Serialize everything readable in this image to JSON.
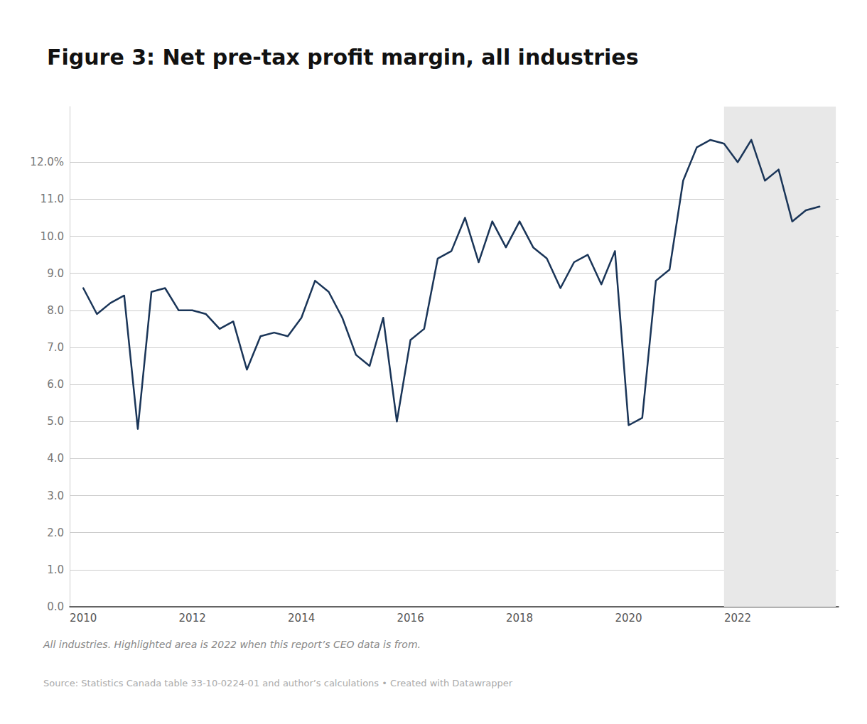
{
  "chart_data": {
    "type": "line",
    "title": "Figure 3: Net pre-tax profit margin, all industries",
    "annotations": [
      "All industries. Highlighted area is 2022 when this report’s CEO data is from.",
      "Source: Statistics Canada table 33-10-0224-01 and author’s calculations • Created with Datawrapper"
    ],
    "color": "#1a3558",
    "highlight": {
      "x": [
        2021.75,
        2023.8
      ],
      "color": "#e8e8e8"
    },
    "x": [
      2010.0,
      2010.25,
      2010.5,
      2010.75,
      2011.0,
      2011.25,
      2011.5,
      2011.75,
      2012.0,
      2012.25,
      2012.5,
      2012.75,
      2013.0,
      2013.25,
      2013.5,
      2013.75,
      2014.0,
      2014.25,
      2014.5,
      2014.75,
      2015.0,
      2015.25,
      2015.5,
      2015.75,
      2016.0,
      2016.25,
      2016.5,
      2016.75,
      2017.0,
      2017.25,
      2017.5,
      2017.75,
      2018.0,
      2018.25,
      2018.5,
      2018.75,
      2019.0,
      2019.25,
      2019.5,
      2019.75,
      2020.0,
      2020.25,
      2020.5,
      2020.75,
      2021.0,
      2021.25,
      2021.5,
      2021.75,
      2022.0,
      2022.25,
      2022.5,
      2022.75,
      2023.0,
      2023.25,
      2023.5
    ],
    "values": [
      8.6,
      7.9,
      8.2,
      8.4,
      4.8,
      8.5,
      8.6,
      8.0,
      8.0,
      7.9,
      7.5,
      7.7,
      6.4,
      7.3,
      7.4,
      7.3,
      7.8,
      8.8,
      8.5,
      7.8,
      6.8,
      6.5,
      7.8,
      5.0,
      7.2,
      7.5,
      9.4,
      9.6,
      10.5,
      9.3,
      10.4,
      9.7,
      10.4,
      9.7,
      9.4,
      8.6,
      9.3,
      9.5,
      8.7,
      9.6,
      4.9,
      5.1,
      8.8,
      9.1,
      11.5,
      12.4,
      12.6,
      12.5,
      12.0,
      12.6,
      11.5,
      11.8,
      10.4,
      10.7,
      10.8
    ],
    "xlim": [
      2009.75,
      2023.85
    ],
    "xticks": [
      2010,
      2012,
      2014,
      2016,
      2018,
      2020,
      2022
    ],
    "ylim": [
      0.0,
      13.5
    ],
    "yticks": [
      {
        "value": 0.0,
        "label": "0.0"
      },
      {
        "value": 1.0,
        "label": "1.0"
      },
      {
        "value": 2.0,
        "label": "2.0"
      },
      {
        "value": 3.0,
        "label": "3.0"
      },
      {
        "value": 4.0,
        "label": "4.0"
      },
      {
        "value": 5.0,
        "label": "5.0"
      },
      {
        "value": 6.0,
        "label": "6.0"
      },
      {
        "value": 7.0,
        "label": "7.0"
      },
      {
        "value": 8.0,
        "label": "8.0"
      },
      {
        "value": 9.0,
        "label": "9.0"
      },
      {
        "value": 10.0,
        "label": "10.0"
      },
      {
        "value": 11.0,
        "label": "11.0"
      },
      {
        "value": 12.0,
        "label": "12.0%"
      }
    ],
    "grid": true
  }
}
